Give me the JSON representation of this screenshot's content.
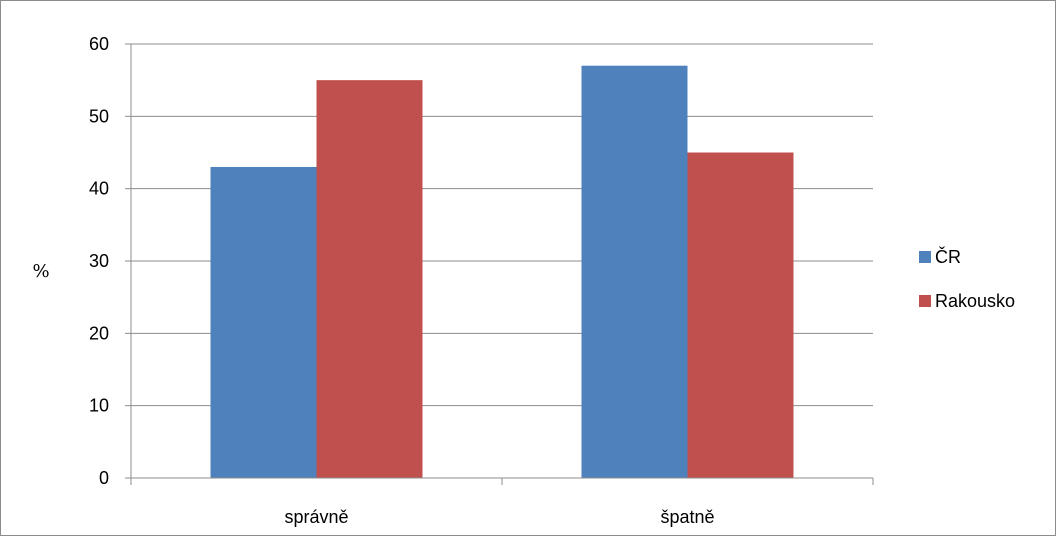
{
  "chart_data": {
    "type": "bar",
    "title": "",
    "xlabel": "",
    "ylabel": "%",
    "ylim": [
      0,
      60
    ],
    "yticks": [
      0,
      10,
      20,
      30,
      40,
      50,
      60
    ],
    "categories": [
      "správně",
      "špatně"
    ],
    "series": [
      {
        "name": "ČR",
        "values": [
          43,
          57
        ],
        "color": "#4f81bd"
      },
      {
        "name": "Rakousko",
        "values": [
          55,
          45
        ],
        "color": "#c0504d"
      }
    ],
    "grid": true,
    "legend_position": "right"
  }
}
